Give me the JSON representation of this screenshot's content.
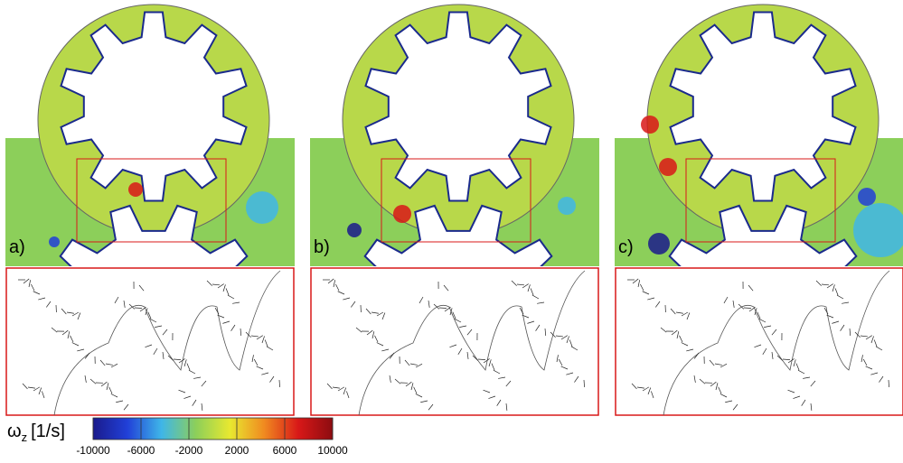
{
  "panels": [
    {
      "label": "a)"
    },
    {
      "label": "b)"
    },
    {
      "label": "c)"
    }
  ],
  "colorbar": {
    "symbol": "ω",
    "subscript": "z",
    "unit": "[1/s]",
    "lim": [
      -10000,
      10000
    ],
    "ticks": [
      -10000,
      -6000,
      -2000,
      2000,
      6000,
      10000
    ],
    "colors": [
      "#1a1a8c",
      "#2140d8",
      "#3fb6e8",
      "#8ccf5a",
      "#e8e830",
      "#f08a20",
      "#d81818",
      "#8c0c10"
    ]
  }
}
